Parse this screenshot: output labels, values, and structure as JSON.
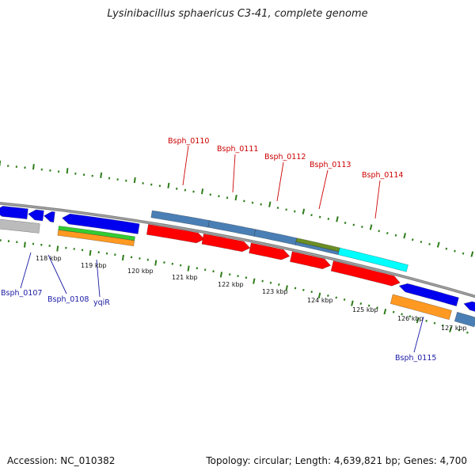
{
  "title": "Lysinibacillus sphaericus C3-41, complete genome",
  "footer": {
    "accession": "Accession: NC_010382",
    "stats": "Topology: circular; Length: 4,639,821 bp; Genes: 4,700"
  },
  "colors": {
    "background": "#ffffff",
    "backbone": "#808080",
    "tick": "#2e7d1a",
    "label_red": "#cc0000",
    "label_blue": "#1a1aa6",
    "cds_red": "#ff0000",
    "cds_steelblue": "#4a7fb5",
    "cds_blue": "#0000ee",
    "cds_orange": "#ff9922",
    "cds_green": "#33cc33",
    "cds_olive": "#6b8e23",
    "cds_cyan": "#00ffff",
    "cds_gray": "#bbbbbb"
  },
  "kbp_ticks": [
    "118 kbp",
    "119 kbp",
    "120 kbp",
    "121 kbp",
    "122 kbp",
    "123 kbp",
    "124 kbp",
    "125 kbp",
    "126 kbp",
    "127 kbp"
  ],
  "genes_outer": [
    {
      "name": "Bsph_0110",
      "color": "cds_red"
    },
    {
      "name": "Bsph_0111",
      "color": "cds_red"
    },
    {
      "name": "Bsph_0112",
      "color": "cds_red"
    },
    {
      "name": "Bsph_0113",
      "color": "cds_red"
    },
    {
      "name": "Bsph_0114",
      "color": "cds_red"
    }
  ],
  "genes_inner": [
    {
      "name": "Bsph_0107",
      "color": "cds_blue"
    },
    {
      "name": "Bsph_0108",
      "color": "cds_blue"
    },
    {
      "name": "yqiR",
      "color": "cds_blue"
    },
    {
      "name": "Bsph_0115",
      "color": "cds_blue"
    }
  ]
}
